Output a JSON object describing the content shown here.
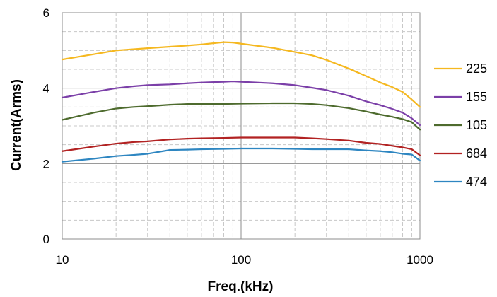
{
  "chart_data": {
    "type": "line",
    "xlabel": "Freq.(kHz)",
    "ylabel": "Current(Arms)",
    "xscale": "log",
    "xlim": [
      10,
      1000
    ],
    "ylim": [
      0,
      6
    ],
    "x_ticks": [
      {
        "value": 10,
        "label": "10"
      },
      {
        "value": 100,
        "label": "100"
      },
      {
        "value": 1000,
        "label": "1000"
      }
    ],
    "y_ticks": [
      {
        "value": 0,
        "label": "0"
      },
      {
        "value": 2,
        "label": "2"
      },
      {
        "value": 4,
        "label": "4"
      },
      {
        "value": 6,
        "label": "6"
      }
    ],
    "grid": true,
    "minor_grid": true,
    "legend_position": "right",
    "series": [
      {
        "name": "225",
        "color": "#F5B820",
        "points": [
          [
            10,
            4.76
          ],
          [
            15,
            4.9
          ],
          [
            20,
            5.0
          ],
          [
            30,
            5.06
          ],
          [
            40,
            5.1
          ],
          [
            50,
            5.13
          ],
          [
            60,
            5.16
          ],
          [
            80,
            5.22
          ],
          [
            90,
            5.21
          ],
          [
            100,
            5.18
          ],
          [
            150,
            5.07
          ],
          [
            200,
            4.96
          ],
          [
            250,
            4.87
          ],
          [
            300,
            4.75
          ],
          [
            400,
            4.52
          ],
          [
            500,
            4.32
          ],
          [
            600,
            4.15
          ],
          [
            700,
            4.03
          ],
          [
            800,
            3.9
          ],
          [
            900,
            3.7
          ],
          [
            1000,
            3.5
          ]
        ]
      },
      {
        "name": "155",
        "color": "#7B3FA8",
        "points": [
          [
            10,
            3.75
          ],
          [
            15,
            3.9
          ],
          [
            20,
            4.0
          ],
          [
            25,
            4.05
          ],
          [
            30,
            4.08
          ],
          [
            40,
            4.1
          ],
          [
            50,
            4.13
          ],
          [
            60,
            4.15
          ],
          [
            80,
            4.17
          ],
          [
            90,
            4.18
          ],
          [
            100,
            4.17
          ],
          [
            150,
            4.13
          ],
          [
            200,
            4.08
          ],
          [
            250,
            4.01
          ],
          [
            300,
            3.95
          ],
          [
            400,
            3.8
          ],
          [
            500,
            3.65
          ],
          [
            600,
            3.55
          ],
          [
            700,
            3.45
          ],
          [
            800,
            3.35
          ],
          [
            900,
            3.2
          ],
          [
            1000,
            3.02
          ]
        ]
      },
      {
        "name": "105",
        "color": "#4E6B2E",
        "points": [
          [
            10,
            3.16
          ],
          [
            15,
            3.35
          ],
          [
            20,
            3.46
          ],
          [
            25,
            3.5
          ],
          [
            30,
            3.52
          ],
          [
            40,
            3.56
          ],
          [
            50,
            3.58
          ],
          [
            60,
            3.58
          ],
          [
            80,
            3.58
          ],
          [
            100,
            3.59
          ],
          [
            150,
            3.6
          ],
          [
            200,
            3.6
          ],
          [
            250,
            3.58
          ],
          [
            300,
            3.55
          ],
          [
            400,
            3.47
          ],
          [
            500,
            3.38
          ],
          [
            600,
            3.3
          ],
          [
            700,
            3.24
          ],
          [
            800,
            3.18
          ],
          [
            900,
            3.1
          ],
          [
            1000,
            2.9
          ]
        ]
      },
      {
        "name": "684",
        "color": "#B22222",
        "points": [
          [
            10,
            2.33
          ],
          [
            15,
            2.45
          ],
          [
            20,
            2.53
          ],
          [
            25,
            2.57
          ],
          [
            30,
            2.59
          ],
          [
            40,
            2.64
          ],
          [
            50,
            2.66
          ],
          [
            60,
            2.67
          ],
          [
            80,
            2.68
          ],
          [
            100,
            2.69
          ],
          [
            150,
            2.69
          ],
          [
            200,
            2.69
          ],
          [
            250,
            2.67
          ],
          [
            300,
            2.65
          ],
          [
            400,
            2.61
          ],
          [
            500,
            2.55
          ],
          [
            600,
            2.52
          ],
          [
            700,
            2.47
          ],
          [
            800,
            2.43
          ],
          [
            900,
            2.38
          ],
          [
            1000,
            2.22
          ]
        ]
      },
      {
        "name": "474",
        "color": "#2E86C1",
        "points": [
          [
            10,
            2.05
          ],
          [
            15,
            2.13
          ],
          [
            20,
            2.2
          ],
          [
            25,
            2.23
          ],
          [
            30,
            2.26
          ],
          [
            40,
            2.36
          ],
          [
            50,
            2.37
          ],
          [
            60,
            2.38
          ],
          [
            80,
            2.39
          ],
          [
            100,
            2.4
          ],
          [
            150,
            2.4
          ],
          [
            200,
            2.39
          ],
          [
            250,
            2.38
          ],
          [
            300,
            2.38
          ],
          [
            400,
            2.38
          ],
          [
            500,
            2.35
          ],
          [
            600,
            2.33
          ],
          [
            700,
            2.3
          ],
          [
            800,
            2.26
          ],
          [
            900,
            2.24
          ],
          [
            1000,
            2.08
          ]
        ]
      }
    ]
  }
}
